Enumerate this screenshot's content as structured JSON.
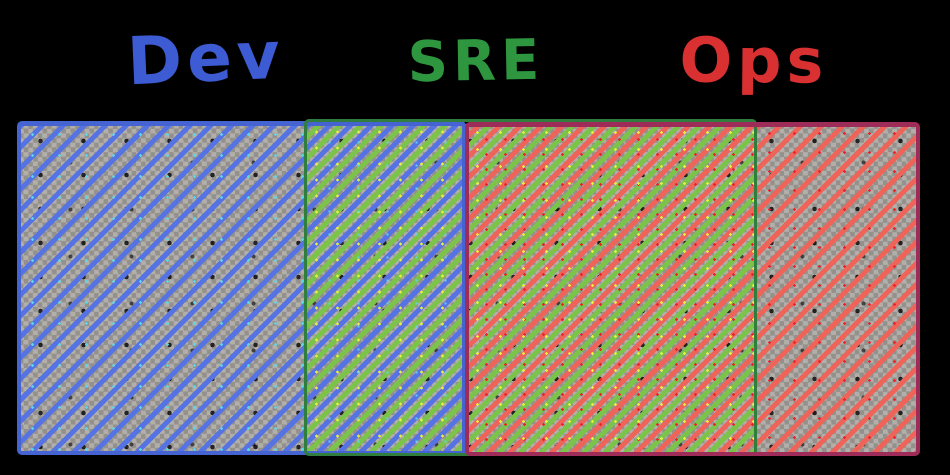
{
  "diagram": {
    "type": "overlap-diagram",
    "background_color": "#000000",
    "labels": {
      "dev": {
        "text": "Dev",
        "color": "#3d5bd3"
      },
      "sre": {
        "text": "SRE",
        "color": "#2e963f"
      },
      "ops": {
        "text": "Ops",
        "color": "#d93031"
      }
    },
    "regions": [
      {
        "id": "dev",
        "label": "Dev",
        "border_color": "#4663d2",
        "hatch_color": "#5673e3",
        "speck_color": "#5cd6e8",
        "hatch_style": "diagonal-lines"
      },
      {
        "id": "sre",
        "label": "SRE",
        "border_color": "#2f7e3e",
        "hatch_color": "#7cc34a",
        "speck_color": "#e8f03e",
        "hatch_style": "diagonal-lines"
      },
      {
        "id": "ops",
        "label": "Ops",
        "border_color": "#9e2c58",
        "hatch_color": "#ef6459",
        "speck_color": "#e8242b",
        "hatch_style": "diagonal-lines"
      }
    ],
    "overlaps": [
      {
        "between": [
          "Dev",
          "SRE"
        ]
      },
      {
        "between": [
          "SRE",
          "Ops"
        ]
      }
    ],
    "fill_texture": {
      "checker_light": "#b2afab",
      "checker_dark": "#94918d"
    }
  }
}
